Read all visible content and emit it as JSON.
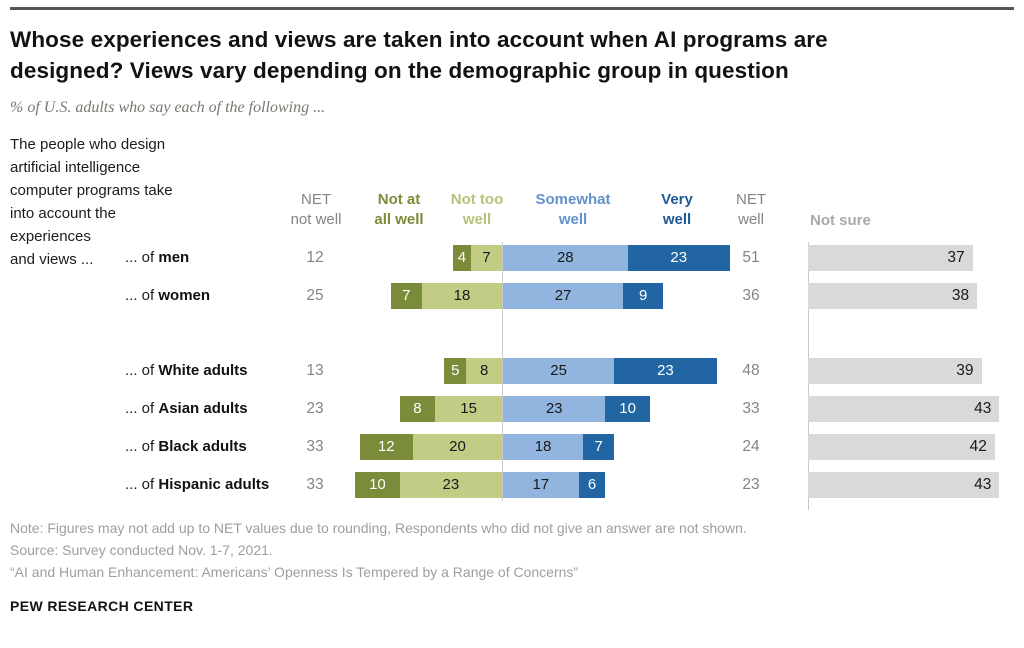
{
  "header": {
    "title_lines": [
      "Whose experiences and views are taken into account when AI programs are",
      "designed? Views vary depending on the demographic group in question"
    ],
    "subtitle": "% of U.S. adults who say each of the following ..."
  },
  "chart_data": {
    "type": "bar",
    "variant": "horizontal-diverging-stacked",
    "question_intro": "The people who design artificial intelligence computer programs take into account the experiences and views ...",
    "question_intro_lines": [
      "The people who design",
      "artificial intelligence",
      "computer programs take",
      "into account the",
      "experiences",
      "and views ..."
    ],
    "column_headers": [
      {
        "id": "net-not-well",
        "lines": [
          "NET",
          "not well"
        ],
        "color": "#848484",
        "bold": false
      },
      {
        "id": "not-at-all-well",
        "lines": [
          "Not at",
          "all well"
        ],
        "color": "#7a8b39",
        "bold": true
      },
      {
        "id": "not-too-well",
        "lines": [
          "Not too",
          "well"
        ],
        "color": "#b3c37a",
        "bold": true
      },
      {
        "id": "somewhat-well",
        "lines": [
          "Somewhat",
          "well"
        ],
        "color": "#6191cb",
        "bold": true
      },
      {
        "id": "very-well",
        "lines": [
          "Very",
          "well"
        ],
        "color": "#1e5b96",
        "bold": true
      },
      {
        "id": "net-well",
        "lines": [
          "NET",
          "well"
        ],
        "color": "#848484",
        "bold": false
      },
      {
        "id": "not-sure",
        "lines": [
          "Not sure"
        ],
        "color": "#a9a9a9",
        "bold": true
      }
    ],
    "categories": [
      {
        "prefix": "... of ",
        "name": "men"
      },
      {
        "prefix": "... of ",
        "name": "women"
      },
      {
        "prefix": "... of ",
        "name": "White adults"
      },
      {
        "prefix": "... of ",
        "name": "Asian adults"
      },
      {
        "prefix": "... of ",
        "name": "Black adults"
      },
      {
        "prefix": "... of ",
        "name": "Hispanic adults"
      }
    ],
    "series": [
      {
        "name": "Not at all well",
        "color": "#7a8b39",
        "label_color": "#ffffff",
        "values": [
          4,
          7,
          5,
          8,
          12,
          10
        ]
      },
      {
        "name": "Not too well",
        "color": "#c2cc85",
        "label_color": "#1a1a1a",
        "values": [
          7,
          18,
          8,
          15,
          20,
          23
        ]
      },
      {
        "name": "Somewhat well",
        "color": "#91b5de",
        "label_color": "#1a1a1a",
        "values": [
          28,
          27,
          25,
          23,
          18,
          17
        ]
      },
      {
        "name": "Very well",
        "color": "#2166a2",
        "label_color": "#ffffff",
        "values": [
          23,
          9,
          23,
          10,
          7,
          6
        ]
      }
    ],
    "net_not_well": [
      12,
      25,
      13,
      23,
      33,
      33
    ],
    "net_well": [
      51,
      36,
      48,
      33,
      24,
      23
    ],
    "not_sure": {
      "name": "Not sure",
      "color": "#d9d9d9",
      "label_color": "#1a1a1a",
      "values": [
        37,
        38,
        39,
        43,
        42,
        43
      ]
    },
    "axis": {
      "center_divider": true,
      "unit": "percent"
    }
  },
  "footer": {
    "note": "Note: Figures may not add up to NET values due to rounding, Respondents who did not give an answer are not shown.",
    "source": "Source: Survey conducted Nov. 1-7, 2021.",
    "report": "“AI and Human Enhancement: Americans’ Openness Is Tempered by a Range of Concerns”",
    "brand": "PEW RESEARCH CENTER"
  }
}
